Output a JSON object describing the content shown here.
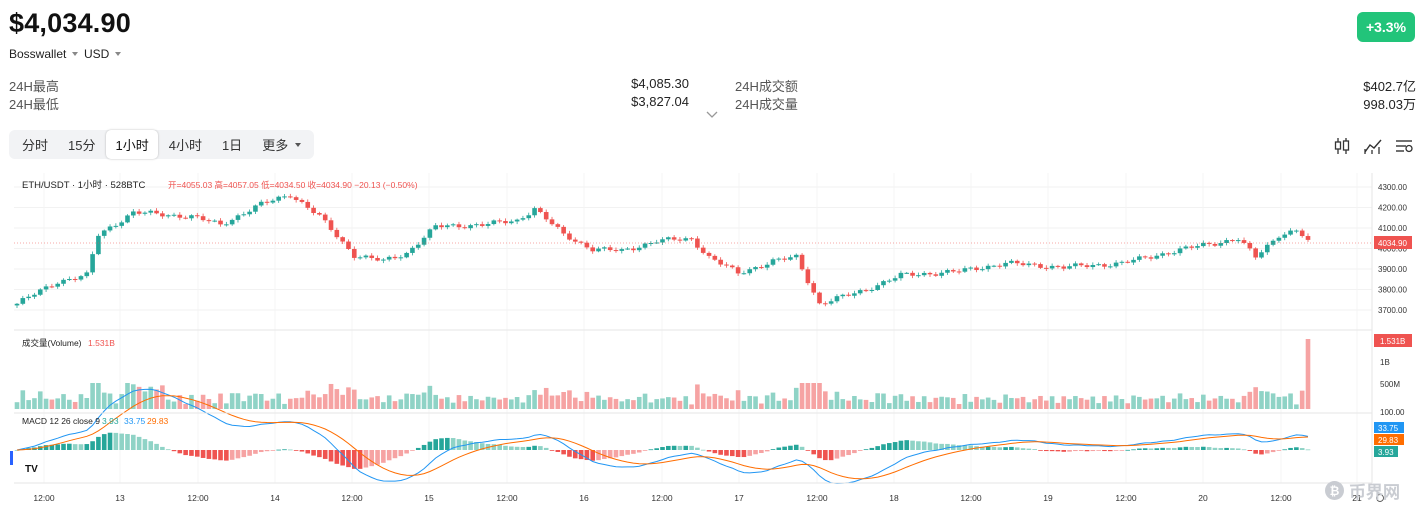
{
  "header": {
    "price": "$4,034.90",
    "exchange": "Bosswallet",
    "currency": "USD",
    "change_badge": "+3.3%",
    "stats_left": [
      {
        "label": "24H最高",
        "value": "$4,085.30"
      },
      {
        "label": "24H最低",
        "value": "$3,827.04"
      }
    ],
    "stats_right": [
      {
        "label": "24H成交额",
        "value": "$402.7亿"
      },
      {
        "label": "24H成交量",
        "value": "998.03万"
      }
    ]
  },
  "toolbar": {
    "tabs": [
      {
        "label": "分时"
      },
      {
        "label": "15分"
      },
      {
        "label": "1小时",
        "active": true
      },
      {
        "label": "4小时"
      },
      {
        "label": "1日"
      },
      {
        "label": "更多"
      }
    ]
  },
  "chart_legend": {
    "symbol": "ETH/USDT · 1小时 · 528BTC",
    "ohlc_text": "开=4055.03  高=4057.05  低=4034.50  收=4034.90  −20.13 (−0.50%)",
    "volume_label": "成交量(Volume)",
    "volume_value": "1.531B",
    "macd_label": "MACD 12 26 close 9",
    "macd_hist": "3.93",
    "macd_line": "33.75",
    "macd_signal": "29.83"
  },
  "axis": {
    "price_ticks": [
      "4300.00",
      "4200.00",
      "4100.00",
      "4000.00",
      "3900.00",
      "3800.00",
      "3700.00"
    ],
    "current_price_tag": "4034.90",
    "volume_ticks": [
      "1B",
      "500M",
      "100.00"
    ],
    "volume_tag": "1.531B",
    "macd_tags": [
      "33.75",
      "29.83",
      "3.93"
    ],
    "time_labels": [
      "12:00",
      "13",
      "12:00",
      "14",
      "12:00",
      "15",
      "12:00",
      "16",
      "12:00",
      "17",
      "12:00",
      "18",
      "12:00",
      "19",
      "12:00",
      "20",
      "12:00",
      "21"
    ]
  },
  "watermark": "币界网",
  "tv_logo": "TV",
  "colors": {
    "up": "#26a69a",
    "down": "#ef5350",
    "badge": "#22c47a",
    "macd_line": "#2196f3",
    "macd_signal": "#ff6d00"
  },
  "chart_data": {
    "type": "candlestick",
    "title": "ETH/USDT · 1小时 · 528BTC",
    "x_range": [
      "12 12:00",
      "21"
    ],
    "ylim": [
      3650,
      4330
    ],
    "close_anchors": [
      {
        "t": 0,
        "v": 3720
      },
      {
        "t": 7,
        "v": 3830
      },
      {
        "t": 12,
        "v": 3860
      },
      {
        "t": 14,
        "v": 4060
      },
      {
        "t": 20,
        "v": 4170
      },
      {
        "t": 30,
        "v": 4150
      },
      {
        "t": 35,
        "v": 4110
      },
      {
        "t": 42,
        "v": 4210
      },
      {
        "t": 47,
        "v": 4260
      },
      {
        "t": 52,
        "v": 4150
      },
      {
        "t": 58,
        "v": 3960
      },
      {
        "t": 63,
        "v": 3930
      },
      {
        "t": 67,
        "v": 3970
      },
      {
        "t": 72,
        "v": 4100
      },
      {
        "t": 80,
        "v": 4110
      },
      {
        "t": 86,
        "v": 4130
      },
      {
        "t": 89,
        "v": 4190
      },
      {
        "t": 94,
        "v": 4060
      },
      {
        "t": 99,
        "v": 3990
      },
      {
        "t": 104,
        "v": 3980
      },
      {
        "t": 110,
        "v": 4030
      },
      {
        "t": 116,
        "v": 4040
      },
      {
        "t": 119,
        "v": 3950
      },
      {
        "t": 124,
        "v": 3870
      },
      {
        "t": 130,
        "v": 3930
      },
      {
        "t": 134,
        "v": 3950
      },
      {
        "t": 138,
        "v": 3720
      },
      {
        "t": 145,
        "v": 3780
      },
      {
        "t": 152,
        "v": 3860
      },
      {
        "t": 162,
        "v": 3880
      },
      {
        "t": 170,
        "v": 3920
      },
      {
        "t": 180,
        "v": 3900
      },
      {
        "t": 190,
        "v": 3920
      },
      {
        "t": 196,
        "v": 3960
      },
      {
        "t": 204,
        "v": 4010
      },
      {
        "t": 210,
        "v": 4040
      },
      {
        "t": 213,
        "v": 3950
      },
      {
        "t": 217,
        "v": 4060
      },
      {
        "t": 220,
        "v": 4080
      },
      {
        "t": 222,
        "v": 4035
      }
    ],
    "volume_spike_last": "1.531B"
  }
}
